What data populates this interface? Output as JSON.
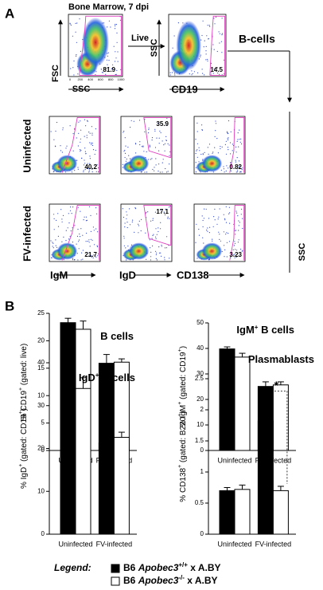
{
  "panel_a": {
    "label": "A",
    "title": "Bone Marrow, 7 dpi",
    "gate1": {
      "y_label": "FSC",
      "x_label": "SSC",
      "value": "81.9",
      "x_ticks": [
        "0",
        "200",
        "400",
        "600",
        "800",
        "1000"
      ]
    },
    "arrow_label": "Live",
    "gate2": {
      "y_label": "SSC",
      "x_label": "CD19",
      "value": "14.5"
    },
    "population": "B-cells",
    "rows": [
      "Uninfected",
      "FV-infected"
    ],
    "columns": [
      "IgM",
      "IgD",
      "CD138"
    ],
    "values": [
      [
        "40.2",
        "35.9",
        "0.82"
      ],
      [
        "21.7",
        "17.1",
        "3.23"
      ]
    ],
    "y_axis": "SSC"
  },
  "panel_b": {
    "label": "B"
  },
  "chart_data": [
    {
      "type": "bar",
      "title": [
        "B cells"
      ],
      "y_label": [
        "% CD19",
        "+",
        " (gated: live)"
      ],
      "categories": [
        "Uninfected",
        "FV-infected"
      ],
      "series": [
        {
          "color": "#000000",
          "values": [
            23.3,
            15.9
          ],
          "errors": [
            0.8,
            1.6
          ]
        },
        {
          "color": "#ffffff",
          "values": [
            22.1,
            16.1
          ],
          "errors": [
            1.5,
            0.6
          ]
        }
      ],
      "ylim": [
        0,
        25
      ],
      "yticks": [
        0,
        5,
        10,
        15,
        20,
        25
      ]
    },
    {
      "type": "bar",
      "title": [
        "IgM",
        "+",
        " B cells"
      ],
      "y_label": [
        "% IgM",
        "+",
        " (gated: CD19",
        "+",
        ")"
      ],
      "categories": [
        "Uninfected",
        "FV-infected"
      ],
      "series": [
        {
          "color": "#000000",
          "values": [
            39.8,
            25.1
          ],
          "errors": [
            0.8,
            1.8
          ]
        },
        {
          "color": "#ffffff",
          "values": [
            36.6,
            25.7
          ],
          "errors": [
            1.5,
            1.2
          ]
        }
      ],
      "ylim": [
        0,
        50
      ],
      "yticks": [
        0,
        10,
        20,
        30,
        40,
        50
      ]
    },
    {
      "type": "bar",
      "title": [
        "IgD",
        "+",
        " B cells"
      ],
      "y_label": [
        "% IgD",
        "+",
        " (gated: CD19",
        "+",
        ")"
      ],
      "categories": [
        "Uninfected",
        "FV-infected"
      ],
      "series": [
        {
          "color": "#000000",
          "values": [
            36.4,
            21.3
          ],
          "errors": [
            1.0,
            1.3
          ]
        },
        {
          "color": "#ffffff",
          "values": [
            34.0,
            22.6
          ],
          "errors": [
            2.5,
            1.2
          ]
        }
      ],
      "ylim": [
        0,
        40
      ],
      "yticks": [
        0,
        10,
        20,
        30,
        40
      ]
    },
    {
      "type": "bar",
      "title": [
        "Plasmablasts"
      ],
      "y_label": [
        "% CD138",
        "+",
        " (gated: B220",
        "+",
        ")"
      ],
      "categories": [
        "Uninfected",
        "FV-infected"
      ],
      "series": [
        {
          "color": "#000000",
          "values": [
            0.7,
            1.82
          ],
          "errors": [
            0.05,
            0.38
          ]
        },
        {
          "color": "#ffffff",
          "values": [
            0.72,
            0.7
          ],
          "errors": [
            0.07,
            0.07
          ]
        }
      ],
      "ylim": [
        0,
        2.5
      ],
      "yticks": [
        0,
        0.5,
        1,
        1.5,
        2,
        2.5
      ],
      "annotation": "*"
    }
  ],
  "legend": {
    "title": "Legend:",
    "entries": [
      [
        "B6 ",
        "Apobec3",
        "+/+",
        " x A.BY"
      ],
      [
        "B6 ",
        "Apobec3",
        "-/-",
        " x A.BY"
      ]
    ]
  }
}
